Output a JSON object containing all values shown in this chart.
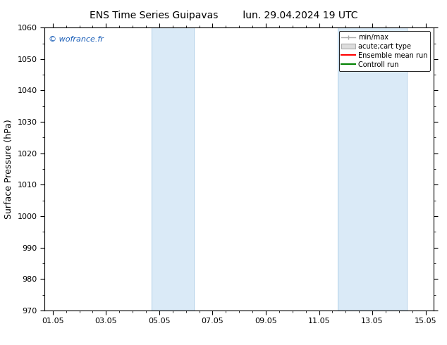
{
  "title_left": "ENS Time Series Guipavas",
  "title_right": "lun. 29.04.2024 19 UTC",
  "ylabel": "Surface Pressure (hPa)",
  "ylim": [
    970,
    1060
  ],
  "yticks": [
    970,
    980,
    990,
    1000,
    1010,
    1020,
    1030,
    1040,
    1050,
    1060
  ],
  "xtick_labels": [
    "01.05",
    "03.05",
    "05.05",
    "07.05",
    "09.05",
    "11.05",
    "13.05",
    "15.05"
  ],
  "xtick_positions": [
    0,
    2,
    4,
    6,
    8,
    10,
    12,
    14
  ],
  "xlim": [
    -0.3,
    14.3
  ],
  "shaded_bands": [
    {
      "xmin": 3.7,
      "xmax": 5.3
    },
    {
      "xmin": 10.7,
      "xmax": 13.3
    }
  ],
  "shade_color": "#daeaf7",
  "shade_edge_color": "#b0cfe8",
  "watermark": "© wofrance.fr",
  "legend_entries": [
    {
      "label": "min/max",
      "color": "#aaaaaa",
      "style": "minmax"
    },
    {
      "label": "acute;cart type",
      "color": "#cccccc",
      "style": "box"
    },
    {
      "label": "Ensemble mean run",
      "color": "red",
      "style": "line"
    },
    {
      "label": "Controll run",
      "color": "green",
      "style": "line"
    }
  ],
  "background_color": "#ffffff",
  "grid_color": "#dddddd",
  "title_fontsize": 10,
  "tick_fontsize": 8,
  "ylabel_fontsize": 9
}
